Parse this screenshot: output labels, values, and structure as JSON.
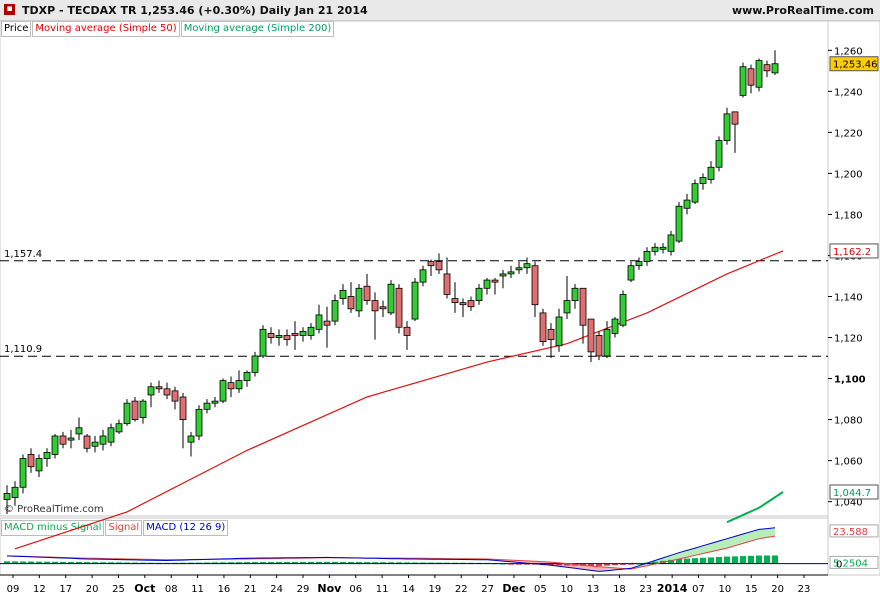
{
  "header": {
    "title": "TDXP - TECDAX TR    1,253.46 (+0.30%)    Daily  Jan 21 2014",
    "brand": "www.ProRealTime.com",
    "icon": "box-icon"
  },
  "price_panel": {
    "legend": [
      "Price",
      "Moving average (Simple 50)",
      "Moving average (Simple 200)"
    ],
    "legend_colors": [
      "#000000",
      "#e00000",
      "#00a060"
    ],
    "watermark": "© ProRealTime.com",
    "level_labels": [
      "1,157.4",
      "1,110.9"
    ],
    "price_badge": "1,253.46",
    "ma50_badge": "1,162.2",
    "ma200_badge": "1,044.7",
    "price_ticks": [
      "1,260",
      "1,240",
      "1,220",
      "1,200",
      "1,180",
      "1,160",
      "1,140",
      "1,120",
      "1,100",
      "1,080",
      "1,060",
      "1,040"
    ]
  },
  "macd_panel": {
    "legend": [
      "MACD minus Signal",
      "Signal",
      "MACD (12 26 9)"
    ],
    "legend_colors": [
      "#00b050",
      "#e04040",
      "#0000cc"
    ],
    "badges": [
      "23.588",
      "5.2504"
    ],
    "tick": "0"
  },
  "x_ticks": [
    "09",
    "12",
    "17",
    "20",
    "25",
    "Oct",
    "08",
    "11",
    "16",
    "21",
    "24",
    "29",
    "Nov",
    "06",
    "11",
    "14",
    "19",
    "22",
    "27",
    "Dec",
    "05",
    "10",
    "13",
    "18",
    "23",
    "2014",
    "07",
    "10",
    "15",
    "20",
    "23"
  ],
  "chart_data": {
    "type": "candlestick",
    "title": "TDXP - TECDAX TR",
    "ylim": [
      1033,
      1266
    ],
    "horizontal_levels": [
      1157.4,
      1110.9
    ],
    "candles": [
      {
        "o": 1041,
        "h": 1048,
        "l": 1034,
        "c": 1044
      },
      {
        "o": 1042,
        "h": 1050,
        "l": 1038,
        "c": 1047
      },
      {
        "o": 1047,
        "h": 1063,
        "l": 1044,
        "c": 1061
      },
      {
        "o": 1063,
        "h": 1066,
        "l": 1054,
        "c": 1057
      },
      {
        "o": 1055,
        "h": 1063,
        "l": 1052,
        "c": 1061
      },
      {
        "o": 1061,
        "h": 1066,
        "l": 1057,
        "c": 1064
      },
      {
        "o": 1063,
        "h": 1073,
        "l": 1061,
        "c": 1072
      },
      {
        "o": 1072,
        "h": 1074,
        "l": 1066,
        "c": 1068
      },
      {
        "o": 1070,
        "h": 1075,
        "l": 1066,
        "c": 1071
      },
      {
        "o": 1073,
        "h": 1081,
        "l": 1070,
        "c": 1076
      },
      {
        "o": 1072,
        "h": 1073,
        "l": 1064,
        "c": 1066
      },
      {
        "o": 1067,
        "h": 1072,
        "l": 1064,
        "c": 1069
      },
      {
        "o": 1068,
        "h": 1075,
        "l": 1065,
        "c": 1072
      },
      {
        "o": 1069,
        "h": 1078,
        "l": 1067,
        "c": 1076
      },
      {
        "o": 1074,
        "h": 1080,
        "l": 1073,
        "c": 1078
      },
      {
        "o": 1078,
        "h": 1090,
        "l": 1077,
        "c": 1088
      },
      {
        "o": 1089,
        "h": 1091,
        "l": 1079,
        "c": 1080
      },
      {
        "o": 1081,
        "h": 1090,
        "l": 1078,
        "c": 1089
      },
      {
        "o": 1092,
        "h": 1098,
        "l": 1086,
        "c": 1096
      },
      {
        "o": 1096,
        "h": 1099,
        "l": 1093,
        "c": 1095
      },
      {
        "o": 1095,
        "h": 1098,
        "l": 1090,
        "c": 1092
      },
      {
        "o": 1094,
        "h": 1096,
        "l": 1085,
        "c": 1089
      },
      {
        "o": 1091,
        "h": 1093,
        "l": 1066,
        "c": 1080
      },
      {
        "o": 1069,
        "h": 1074,
        "l": 1062,
        "c": 1072
      },
      {
        "o": 1072,
        "h": 1087,
        "l": 1070,
        "c": 1085
      },
      {
        "o": 1085,
        "h": 1090,
        "l": 1083,
        "c": 1088
      },
      {
        "o": 1088,
        "h": 1091,
        "l": 1086,
        "c": 1089
      },
      {
        "o": 1089,
        "h": 1100,
        "l": 1088,
        "c": 1099
      },
      {
        "o": 1098,
        "h": 1101,
        "l": 1091,
        "c": 1095
      },
      {
        "o": 1095,
        "h": 1104,
        "l": 1093,
        "c": 1099
      },
      {
        "o": 1099,
        "h": 1104,
        "l": 1096,
        "c": 1103
      },
      {
        "o": 1103,
        "h": 1113,
        "l": 1101,
        "c": 1111
      },
      {
        "o": 1111,
        "h": 1126,
        "l": 1110,
        "c": 1124
      },
      {
        "o": 1122,
        "h": 1125,
        "l": 1117,
        "c": 1120
      },
      {
        "o": 1120,
        "h": 1124,
        "l": 1116,
        "c": 1121
      },
      {
        "o": 1121,
        "h": 1124,
        "l": 1116,
        "c": 1119
      },
      {
        "o": 1122,
        "h": 1128,
        "l": 1114,
        "c": 1121
      },
      {
        "o": 1121,
        "h": 1125,
        "l": 1118,
        "c": 1123
      },
      {
        "o": 1121,
        "h": 1127,
        "l": 1119,
        "c": 1125
      },
      {
        "o": 1124,
        "h": 1136,
        "l": 1122,
        "c": 1131
      },
      {
        "o": 1128,
        "h": 1135,
        "l": 1115,
        "c": 1126
      },
      {
        "o": 1128,
        "h": 1141,
        "l": 1126,
        "c": 1138
      },
      {
        "o": 1139,
        "h": 1146,
        "l": 1136,
        "c": 1143
      },
      {
        "o": 1140,
        "h": 1147,
        "l": 1132,
        "c": 1134
      },
      {
        "o": 1133,
        "h": 1146,
        "l": 1130,
        "c": 1144
      },
      {
        "o": 1145,
        "h": 1151,
        "l": 1136,
        "c": 1138
      },
      {
        "o": 1138,
        "h": 1142,
        "l": 1119,
        "c": 1133
      },
      {
        "o": 1135,
        "h": 1138,
        "l": 1130,
        "c": 1134
      },
      {
        "o": 1132,
        "h": 1148,
        "l": 1131,
        "c": 1146
      },
      {
        "o": 1144,
        "h": 1146,
        "l": 1122,
        "c": 1125
      },
      {
        "o": 1125,
        "h": 1128,
        "l": 1114,
        "c": 1121
      },
      {
        "o": 1129,
        "h": 1149,
        "l": 1128,
        "c": 1147
      },
      {
        "o": 1147,
        "h": 1155,
        "l": 1145,
        "c": 1153
      },
      {
        "o": 1157,
        "h": 1158,
        "l": 1150,
        "c": 1155
      },
      {
        "o": 1157,
        "h": 1161,
        "l": 1151,
        "c": 1153
      },
      {
        "o": 1151,
        "h": 1159,
        "l": 1139,
        "c": 1141
      },
      {
        "o": 1139,
        "h": 1147,
        "l": 1132,
        "c": 1137
      },
      {
        "o": 1137,
        "h": 1139,
        "l": 1130,
        "c": 1136
      },
      {
        "o": 1138,
        "h": 1140,
        "l": 1133,
        "c": 1135
      },
      {
        "o": 1138,
        "h": 1146,
        "l": 1136,
        "c": 1144
      },
      {
        "o": 1144,
        "h": 1149,
        "l": 1141,
        "c": 1148
      },
      {
        "o": 1148,
        "h": 1149,
        "l": 1141,
        "c": 1147
      },
      {
        "o": 1150,
        "h": 1153,
        "l": 1144,
        "c": 1151
      },
      {
        "o": 1151,
        "h": 1155,
        "l": 1149,
        "c": 1152
      },
      {
        "o": 1153,
        "h": 1157,
        "l": 1151,
        "c": 1154
      },
      {
        "o": 1154,
        "h": 1159,
        "l": 1151,
        "c": 1156
      },
      {
        "o": 1155,
        "h": 1157,
        "l": 1130,
        "c": 1136
      },
      {
        "o": 1132,
        "h": 1134,
        "l": 1116,
        "c": 1118
      },
      {
        "o": 1124,
        "h": 1127,
        "l": 1110,
        "c": 1119
      },
      {
        "o": 1116,
        "h": 1134,
        "l": 1113,
        "c": 1130
      },
      {
        "o": 1132,
        "h": 1150,
        "l": 1129,
        "c": 1138
      },
      {
        "o": 1138,
        "h": 1146,
        "l": 1134,
        "c": 1144
      },
      {
        "o": 1144,
        "h": 1144,
        "l": 1117,
        "c": 1126
      },
      {
        "o": 1129,
        "h": 1129,
        "l": 1108,
        "c": 1113
      },
      {
        "o": 1121,
        "h": 1123,
        "l": 1109,
        "c": 1111
      },
      {
        "o": 1111,
        "h": 1128,
        "l": 1110,
        "c": 1124
      },
      {
        "o": 1122,
        "h": 1130,
        "l": 1120,
        "c": 1129
      },
      {
        "o": 1126,
        "h": 1143,
        "l": 1125,
        "c": 1141
      },
      {
        "o": 1148,
        "h": 1157,
        "l": 1147,
        "c": 1155
      },
      {
        "o": 1155,
        "h": 1159,
        "l": 1153,
        "c": 1157
      },
      {
        "o": 1157,
        "h": 1164,
        "l": 1155,
        "c": 1162
      },
      {
        "o": 1162,
        "h": 1166,
        "l": 1160,
        "c": 1164
      },
      {
        "o": 1163,
        "h": 1166,
        "l": 1161,
        "c": 1164
      },
      {
        "o": 1162,
        "h": 1172,
        "l": 1160,
        "c": 1170
      },
      {
        "o": 1167,
        "h": 1186,
        "l": 1166,
        "c": 1184
      },
      {
        "o": 1183,
        "h": 1190,
        "l": 1180,
        "c": 1187
      },
      {
        "o": 1186,
        "h": 1197,
        "l": 1185,
        "c": 1195
      },
      {
        "o": 1195,
        "h": 1200,
        "l": 1192,
        "c": 1198
      },
      {
        "o": 1197,
        "h": 1206,
        "l": 1195,
        "c": 1203
      },
      {
        "o": 1203,
        "h": 1218,
        "l": 1201,
        "c": 1216
      },
      {
        "o": 1216,
        "h": 1232,
        "l": 1214,
        "c": 1229
      },
      {
        "o": 1230,
        "h": 1230,
        "l": 1210,
        "c": 1224
      },
      {
        "o": 1238,
        "h": 1254,
        "l": 1237,
        "c": 1252
      },
      {
        "o": 1251,
        "h": 1253,
        "l": 1239,
        "c": 1243
      },
      {
        "o": 1242,
        "h": 1256,
        "l": 1240,
        "c": 1255
      },
      {
        "o": 1253,
        "h": 1255,
        "l": 1247,
        "c": 1250
      },
      {
        "o": 1249,
        "h": 1260,
        "l": 1248,
        "c": 1253.46
      }
    ],
    "ma50": [
      [
        1,
        1017
      ],
      [
        15,
        1035
      ],
      [
        30,
        1065
      ],
      [
        45,
        1091
      ],
      [
        60,
        1108
      ],
      [
        70,
        1117
      ],
      [
        80,
        1132
      ],
      [
        90,
        1151
      ],
      [
        97,
        1162.2
      ]
    ],
    "ma200": [
      [
        90,
        1030
      ],
      [
        94,
        1037
      ],
      [
        97,
        1044.7
      ]
    ],
    "macd_scale": [
      -6,
      28
    ],
    "macd_panel_data": {
      "macd": [
        [
          0,
          5
        ],
        [
          10,
          3
        ],
        [
          20,
          2
        ],
        [
          30,
          3.5
        ],
        [
          40,
          4
        ],
        [
          50,
          3
        ],
        [
          60,
          2.5
        ],
        [
          68,
          -1
        ],
        [
          74,
          -5
        ],
        [
          78,
          -3
        ],
        [
          84,
          7
        ],
        [
          90,
          16
        ],
        [
          94,
          22
        ],
        [
          97,
          23.5
        ]
      ],
      "signal": [
        [
          0,
          5
        ],
        [
          10,
          3.5
        ],
        [
          20,
          2.5
        ],
        [
          30,
          3
        ],
        [
          40,
          3.8
        ],
        [
          50,
          3.5
        ],
        [
          60,
          3
        ],
        [
          68,
          1
        ],
        [
          74,
          -2
        ],
        [
          78,
          -3.5
        ],
        [
          84,
          3
        ],
        [
          90,
          10
        ],
        [
          94,
          16
        ],
        [
          97,
          18.5
        ]
      ],
      "histogram": [
        [
          0,
          1.5
        ],
        [
          10,
          1
        ],
        [
          20,
          0.5
        ],
        [
          30,
          1
        ],
        [
          40,
          1.2
        ],
        [
          50,
          0.8
        ],
        [
          60,
          0.5
        ],
        [
          68,
          -1
        ],
        [
          74,
          -1.6
        ],
        [
          78,
          -0.5
        ],
        [
          84,
          3
        ],
        [
          90,
          4.5
        ],
        [
          94,
          5.2
        ],
        [
          97,
          5.25
        ]
      ]
    }
  }
}
